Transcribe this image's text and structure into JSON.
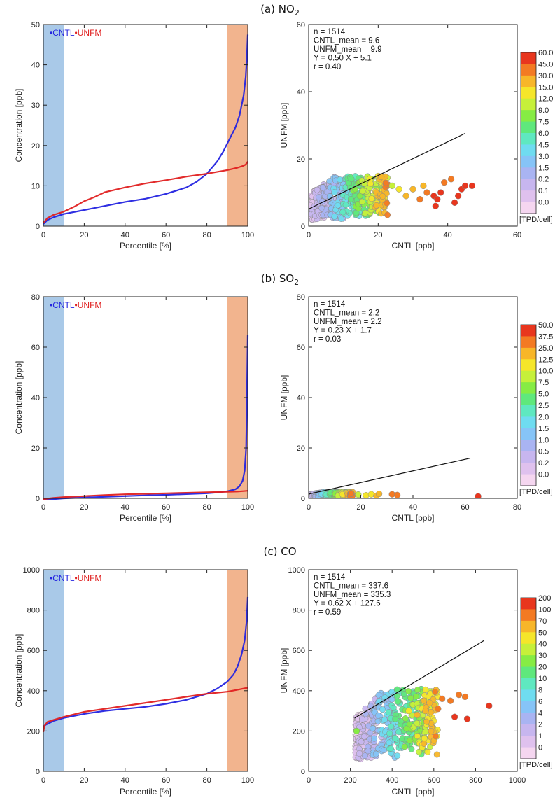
{
  "colors": {
    "cntl": "#2424e0",
    "unfm": "#e02020",
    "low_band": "#a9c9e8",
    "high_band": "#f2b48e",
    "overlap": "#6a44c8",
    "fit_line": "#111111",
    "axis": "#222222"
  },
  "scatter_colors": [
    "#fff6fb",
    "#f5d6f0",
    "#dfc1ee",
    "#c7b6ef",
    "#a9b4f2",
    "#86c4f7",
    "#6fdcf0",
    "#5fe8c0",
    "#5fe87c",
    "#86ec44",
    "#c6f03a",
    "#f5e62a",
    "#f7b629",
    "#f37a23",
    "#e8361e"
  ],
  "chart_data": [
    {
      "type": "line",
      "panel": "a",
      "title_main": "(a) NO",
      "title_sub": "2",
      "xlabel": "Percentile [%]",
      "ylabel": "Concentration [ppb]",
      "xlim": [
        0,
        100
      ],
      "ylim": [
        0,
        50
      ],
      "xticks": [
        0,
        20,
        40,
        60,
        80,
        100
      ],
      "yticks": [
        0,
        10,
        20,
        30,
        40,
        50
      ],
      "shaded_ranges": [
        [
          0,
          10
        ],
        [
          90,
          100
        ]
      ],
      "legend": [
        "CNTL",
        "UNFM"
      ],
      "series": [
        {
          "name": "CNTL",
          "x": [
            0,
            2,
            5,
            10,
            20,
            30,
            40,
            50,
            60,
            70,
            75,
            80,
            85,
            88,
            90,
            92,
            94,
            96,
            98,
            99,
            99.6,
            100
          ],
          "y": [
            0.5,
            1.5,
            2.2,
            3.0,
            4.0,
            5.0,
            6.0,
            6.8,
            8.0,
            9.6,
            11.0,
            13.0,
            16.0,
            18.5,
            20.5,
            22.5,
            24.5,
            27.5,
            32.5,
            37.0,
            42.0,
            47.5
          ]
        },
        {
          "name": "UNFM",
          "x": [
            0,
            2,
            5,
            10,
            15,
            20,
            25,
            30,
            40,
            50,
            60,
            70,
            80,
            90,
            95,
            98,
            99,
            100
          ],
          "y": [
            0.8,
            2.0,
            2.8,
            3.6,
            4.8,
            6.2,
            7.2,
            8.4,
            9.6,
            10.6,
            11.4,
            12.3,
            13.0,
            13.9,
            14.5,
            15.0,
            15.3,
            16.0
          ]
        }
      ]
    },
    {
      "type": "scatter",
      "panel": "a",
      "xlabel": "CNTL [ppb]",
      "ylabel": "UNFM [ppb]",
      "xlim": [
        0,
        60
      ],
      "ylim": [
        0,
        60
      ],
      "xticks": [
        0,
        20,
        40,
        60
      ],
      "yticks": [
        0,
        20,
        40,
        60
      ],
      "stats": [
        "n = 1514",
        "CNTL_mean = 9.6",
        "UNFM_mean = 9.9",
        "Y = 0.50 X + 5.1",
        "r = 0.40"
      ],
      "fit": {
        "slope": 0.5,
        "intercept": 5.1,
        "x_range": [
          0,
          45
        ]
      },
      "cluster": {
        "x_min": 0.5,
        "x_max": 23,
        "y_max": 15,
        "rise": 6
      },
      "outliers": [
        [
          24,
          12,
          10
        ],
        [
          26,
          11,
          11
        ],
        [
          28,
          9,
          12
        ],
        [
          30,
          11,
          12
        ],
        [
          32,
          8,
          13
        ],
        [
          33,
          12,
          12
        ],
        [
          34,
          10,
          13
        ],
        [
          36,
          9,
          14
        ],
        [
          36.5,
          6,
          14
        ],
        [
          37,
          8,
          14
        ],
        [
          38,
          10,
          14
        ],
        [
          39,
          13,
          13
        ],
        [
          41,
          14,
          13
        ],
        [
          42,
          7,
          14
        ],
        [
          43,
          9,
          14
        ],
        [
          44,
          11,
          14
        ],
        [
          45,
          12,
          14
        ],
        [
          47,
          12,
          14
        ]
      ],
      "colorbar": {
        "ticks": [
          "60.0",
          "45.0",
          "30.0",
          "15.0",
          "12.0",
          "9.0",
          "7.5",
          "6.0",
          "4.5",
          "3.0",
          "1.5",
          "0.2",
          "0.1",
          "0.0"
        ],
        "label": "[TPD/cell]"
      }
    },
    {
      "type": "line",
      "panel": "b",
      "title_main": "(b) SO",
      "title_sub": "2",
      "xlabel": "Percentile [%]",
      "ylabel": "Concentration [ppb]",
      "xlim": [
        0,
        100
      ],
      "ylim": [
        0,
        80
      ],
      "xticks": [
        0,
        20,
        40,
        60,
        80,
        100
      ],
      "yticks": [
        0,
        20,
        40,
        60,
        80
      ],
      "shaded_ranges": [
        [
          0,
          10
        ],
        [
          90,
          100
        ]
      ],
      "legend": [
        "CNTL",
        "UNFM"
      ],
      "series": [
        {
          "name": "CNTL",
          "x": [
            0,
            5,
            10,
            20,
            30,
            40,
            50,
            60,
            70,
            80,
            85,
            90,
            94,
            96,
            97.5,
            98.5,
            99.2,
            99.6,
            100
          ],
          "y": [
            -0.5,
            -0.3,
            0,
            0.3,
            0.6,
            0.9,
            1.2,
            1.4,
            1.7,
            2.0,
            2.3,
            2.8,
            3.6,
            4.8,
            7.0,
            11.0,
            20.0,
            40.0,
            65.0
          ]
        },
        {
          "name": "UNFM",
          "x": [
            0,
            5,
            10,
            20,
            30,
            40,
            50,
            60,
            70,
            80,
            90,
            95,
            100
          ],
          "y": [
            -0.3,
            0.2,
            0.5,
            0.9,
            1.3,
            1.6,
            1.8,
            2.0,
            2.2,
            2.4,
            2.6,
            2.7,
            3.0
          ]
        }
      ]
    },
    {
      "type": "scatter",
      "panel": "b",
      "xlabel": "CNTL [ppb]",
      "ylabel": "UNFM [ppb]",
      "xlim": [
        0,
        80
      ],
      "ylim": [
        0,
        80
      ],
      "xticks": [
        0,
        20,
        40,
        60,
        80
      ],
      "yticks": [
        0,
        20,
        40,
        60,
        80
      ],
      "stats": [
        "n = 1514",
        "CNTL_mean = 2.2",
        "UNFM_mean = 2.2",
        "Y = 0.23 X + 1.7",
        "r = 0.03"
      ],
      "fit": {
        "slope": 0.23,
        "intercept": 1.7,
        "x_range": [
          0,
          62
        ]
      },
      "cluster": {
        "x_min": 0.3,
        "x_max": 17,
        "y_max": 2.5,
        "rise": 0.2
      },
      "outliers": [
        [
          19,
          1.5,
          10
        ],
        [
          22,
          1.2,
          11
        ],
        [
          24,
          1.6,
          11
        ],
        [
          26,
          1.0,
          12
        ],
        [
          27,
          1.8,
          12
        ],
        [
          32,
          1.6,
          13
        ],
        [
          34,
          1.3,
          13
        ],
        [
          65,
          0.8,
          14
        ]
      ],
      "colorbar": {
        "ticks": [
          "50.0",
          "37.5",
          "25.0",
          "12.5",
          "10.0",
          "7.5",
          "5.0",
          "2.5",
          "2.0",
          "1.5",
          "1.0",
          "0.5",
          "0.2",
          "0.0"
        ],
        "label": "[TPD/cell]"
      }
    },
    {
      "type": "line",
      "panel": "c",
      "title_main": "(c) CO",
      "title_sub": "",
      "xlabel": "Percentile [%]",
      "ylabel": "Concentration [ppb]",
      "xlim": [
        0,
        100
      ],
      "ylim": [
        0,
        1000
      ],
      "xticks": [
        0,
        20,
        40,
        60,
        80,
        100
      ],
      "yticks": [
        0,
        200,
        400,
        600,
        800,
        1000
      ],
      "shaded_ranges": [
        [
          0,
          10
        ],
        [
          90,
          100
        ]
      ],
      "legend": [
        "CNTL",
        "UNFM"
      ],
      "series": [
        {
          "name": "CNTL",
          "x": [
            0,
            1,
            3,
            5,
            10,
            20,
            30,
            40,
            50,
            60,
            70,
            80,
            85,
            90,
            93,
            95,
            97,
            98.5,
            99.5,
            100
          ],
          "y": [
            220,
            230,
            240,
            250,
            265,
            285,
            300,
            310,
            320,
            335,
            355,
            385,
            410,
            445,
            480,
            520,
            580,
            650,
            750,
            865
          ]
        },
        {
          "name": "UNFM",
          "x": [
            0,
            0.5,
            2,
            5,
            10,
            20,
            30,
            40,
            50,
            60,
            70,
            80,
            90,
            95,
            100
          ],
          "y": [
            195,
            225,
            245,
            255,
            270,
            295,
            310,
            325,
            340,
            355,
            370,
            385,
            395,
            405,
            415
          ]
        }
      ]
    },
    {
      "type": "scatter",
      "panel": "c",
      "xlabel": "CNTL [ppb]",
      "ylabel": "UNFM [ppb]",
      "xlim": [
        0,
        1000
      ],
      "ylim": [
        0,
        1000
      ],
      "xticks": [
        0,
        200,
        400,
        600,
        800,
        1000
      ],
      "yticks": [
        0,
        200,
        400,
        600,
        800,
        1000
      ],
      "stats": [
        "n = 1514",
        "CNTL_mean = 337.6",
        "UNFM_mean = 335.3",
        "Y = 0.62 X + 127.6",
        "r = 0.59"
      ],
      "fit": {
        "slope": 0.62,
        "intercept": 127.6,
        "x_range": [
          220,
          840
        ]
      },
      "cluster": {
        "x_min": 225,
        "x_max": 620,
        "y_max": 410,
        "rise": 150
      },
      "outliers": [
        [
          230,
          200,
          9
        ],
        [
          480,
          300,
          11
        ],
        [
          520,
          280,
          12
        ],
        [
          560,
          300,
          12
        ],
        [
          580,
          340,
          12
        ],
        [
          620,
          310,
          13
        ],
        [
          640,
          360,
          13
        ],
        [
          680,
          350,
          13
        ],
        [
          700,
          270,
          14
        ],
        [
          720,
          380,
          13
        ],
        [
          750,
          370,
          13
        ],
        [
          760,
          260,
          14
        ],
        [
          865,
          325,
          14
        ]
      ],
      "colorbar": {
        "ticks": [
          "200",
          "100",
          "70",
          "50",
          "40",
          "30",
          "20",
          "10",
          "8",
          "6",
          "4",
          "2",
          "1",
          "0"
        ],
        "label": "[TPD/cell]"
      }
    }
  ]
}
